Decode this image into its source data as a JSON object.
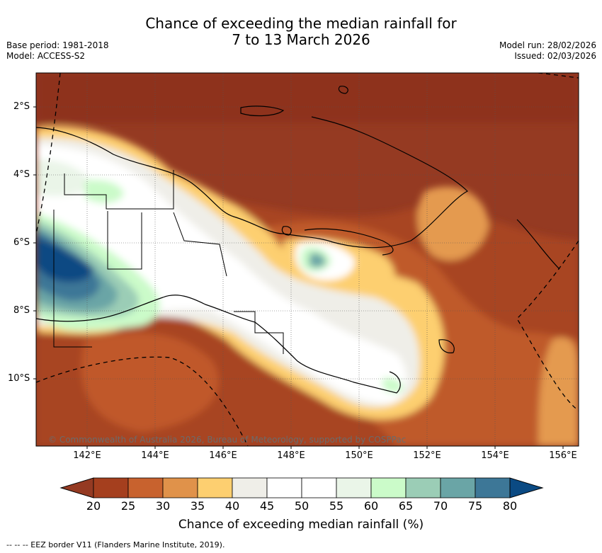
{
  "title": {
    "line1": "Chance of exceeding the median rainfall for",
    "line2": "7 to 13 March 2026"
  },
  "meta": {
    "base_period": "Base period: 1981-2018",
    "model": "Model: ACCESS-S2",
    "model_run": "Model run: 28/02/2026",
    "issued": "Issued: 02/03/2026"
  },
  "map": {
    "lat_labels": [
      "2°S",
      "4°S",
      "6°S",
      "8°S",
      "10°S"
    ],
    "lon_labels": [
      "142°E",
      "144°E",
      "146°E",
      "148°E",
      "150°E",
      "152°E",
      "154°E",
      "156°E"
    ],
    "copyright": "© Commonwealth of Australia 2026, Bureau of Meteorology, supported by COSPPac"
  },
  "colorbar": {
    "label": "Chance of exceeding median rainfall (%)",
    "ticks": [
      "20",
      "25",
      "30",
      "35",
      "40",
      "45",
      "50",
      "55",
      "60",
      "65",
      "70",
      "75",
      "80"
    ],
    "colors": [
      "#a53f1e",
      "#c8622e",
      "#e0924a",
      "#fdcf70",
      "#efeee8",
      "#ffffff",
      "#ffffff",
      "#eaf5e8",
      "#cbfbc9",
      "#9bcdb6",
      "#6aa5a6",
      "#3d7797"
    ],
    "under_color": "#953a22",
    "over_color": "#0b4a83"
  },
  "legend": {
    "eez": "--  --  -- EEZ border V11 (Flanders Marine Institute, 2019)."
  }
}
